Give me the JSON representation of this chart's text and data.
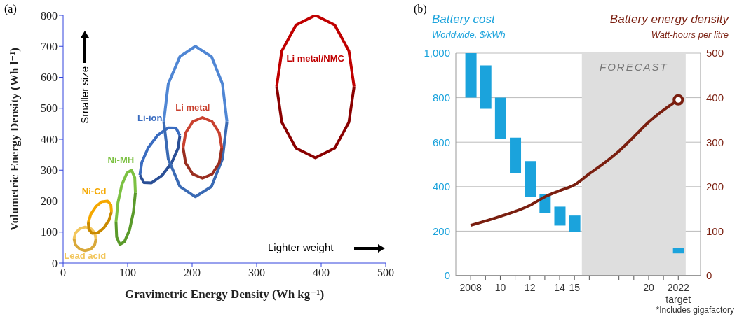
{
  "chart_data": [
    {
      "type": "line",
      "title": "(a)",
      "xlabel": "Gravimetric Energy Density (Wh kg⁻¹)",
      "ylabel": "Volumetric Energy Density (Wh l⁻¹)",
      "xlim": [
        0,
        500
      ],
      "ylim": [
        0,
        800
      ],
      "xticks": [
        0,
        100,
        200,
        300,
        400,
        500
      ],
      "yticks": [
        0,
        100,
        200,
        300,
        400,
        500,
        600,
        700,
        800
      ],
      "annotations": [
        "Smaller size",
        "Lighter weight"
      ],
      "series": [
        {
          "name": "Lead acid",
          "color": "#f2c65c",
          "x": [
            17,
            19,
            26,
            34,
            43,
            49,
            51
          ],
          "values": [
            78,
            97,
            111,
            116,
            111,
            97,
            78
          ]
        },
        {
          "color": "#d9a93a",
          "x": [
            17,
            19,
            26,
            34,
            43,
            49,
            51
          ],
          "values": [
            78,
            59,
            45,
            40,
            45,
            59,
            78
          ]
        },
        {
          "name": "Ni-Cd",
          "color": "#f5a800",
          "x": [
            39,
            43,
            51,
            60,
            69,
            74,
            75
          ],
          "values": [
            131,
            158,
            183,
            198,
            200,
            188,
            165
          ]
        },
        {
          "color": "#c98a00",
          "x": [
            39,
            40,
            45,
            54,
            63,
            71,
            75
          ],
          "values": [
            131,
            108,
            96,
            98,
            113,
            138,
            165
          ]
        },
        {
          "name": "Ni-MH",
          "color": "#7cc142",
          "x": [
            82,
            85,
            91,
            99,
            106,
            111,
            112
          ],
          "values": [
            133,
            195,
            253,
            291,
            300,
            276,
            227
          ]
        },
        {
          "color": "#5a9a2a",
          "x": [
            82,
            83,
            88,
            95,
            103,
            109,
            112
          ],
          "values": [
            133,
            84,
            60,
            69,
            107,
            165,
            227
          ]
        },
        {
          "name": "Li-ion",
          "color": "#3a6cc0",
          "x": [
            119,
            122,
            132,
            147,
            163,
            175,
            181
          ],
          "values": [
            284,
            326,
            373,
            414,
            437,
            436,
            412
          ]
        },
        {
          "color": "#2a4f96",
          "x": [
            119,
            125,
            137,
            153,
            168,
            178,
            181
          ],
          "values": [
            284,
            260,
            259,
            282,
            323,
            370,
            412
          ]
        },
        {
          "color": "#4f86d4",
          "x": [
            156,
            163,
            181,
            205,
            230,
            247,
            254
          ],
          "values": [
            457,
            579,
            667,
            700,
            667,
            579,
            457
          ]
        },
        {
          "color": "#3a6ab4",
          "x": [
            156,
            163,
            181,
            205,
            230,
            247,
            254
          ],
          "values": [
            457,
            336,
            247,
            214,
            247,
            336,
            457
          ]
        },
        {
          "name": "Li metal",
          "color": "#c9412f",
          "x": [
            186,
            190,
            201,
            216,
            231,
            242,
            246
          ],
          "values": [
            372,
            421,
            457,
            470,
            457,
            421,
            372
          ]
        },
        {
          "color": "#9a2e20",
          "x": [
            186,
            190,
            201,
            216,
            231,
            242,
            246
          ],
          "values": [
            372,
            323,
            287,
            274,
            287,
            323,
            372
          ]
        },
        {
          "name": "Li metal/NMC",
          "color": "#c00000",
          "x": [
            331,
            339,
            361,
            391,
            421,
            443,
            451
          ],
          "values": [
            570,
            685,
            769,
            800,
            769,
            685,
            570
          ]
        },
        {
          "color": "#8a0000",
          "x": [
            331,
            339,
            361,
            391,
            421,
            443,
            451
          ],
          "values": [
            570,
            455,
            371,
            340,
            371,
            455,
            570
          ]
        }
      ]
    },
    {
      "type": "bar",
      "title": "(b)",
      "ylabel": "Battery cost",
      "y2label": "Battery energy density",
      "annotations": [
        "Worldwide, $/kWh",
        "Watt-hours per litre",
        "*Includes gigafactory"
      ],
      "xlim": [
        2007,
        2023.5
      ],
      "xticks": [
        {
          "value": 2008,
          "label": "2008"
        },
        {
          "value": 2009,
          "label": null
        },
        {
          "value": 2010,
          "label": "10"
        },
        {
          "value": 2011,
          "label": null
        },
        {
          "value": 2012,
          "label": "12"
        },
        {
          "value": 2013,
          "label": null
        },
        {
          "value": 2014,
          "label": "14"
        },
        {
          "value": 2015,
          "label": "15"
        },
        {
          "value": 2016,
          "label": null
        },
        {
          "value": 2017,
          "label": null
        },
        {
          "value": 2018,
          "label": null
        },
        {
          "value": 2019,
          "label": null
        },
        {
          "value": 2020,
          "label": "20"
        },
        {
          "value": 2021,
          "label": null
        },
        {
          "value": 2022,
          "label": "2022\ntarget"
        }
      ],
      "ylim": [
        0,
        1000
      ],
      "yticks": [
        0,
        200,
        400,
        600,
        800,
        {
          "value": 1000,
          "label": "1,000"
        }
      ],
      "y2lim": [
        0,
        500
      ],
      "y2ticks": [
        0,
        100,
        200,
        300,
        400,
        500
      ],
      "grid": "y",
      "bands": [
        {
          "axis": "x",
          "from": 2015.5,
          "to": 2022.5,
          "label": "FORECAST",
          "color": "#dedede"
        }
      ],
      "series": [
        {
          "type": "bar",
          "color": "#1ba3dc",
          "x": [
            2008,
            2009,
            2010,
            2011,
            2012,
            2013,
            2014,
            2015,
            2022
          ],
          "base": [
            800,
            750,
            615,
            460,
            355,
            280,
            225,
            195,
            100
          ],
          "values": [
            200,
            195,
            185,
            160,
            160,
            85,
            85,
            75,
            25
          ]
        },
        {
          "type": "line",
          "axis": "y2",
          "color": "#7a1f10",
          "x": [
            2008,
            2010,
            2012,
            2013,
            2014,
            2015,
            2016,
            2017,
            2018,
            2019,
            2020,
            2021,
            2022
          ],
          "values": [
            113,
            133,
            158,
            177,
            191,
            204,
            229,
            253,
            280,
            312,
            345,
            372,
            395
          ]
        },
        {
          "type": "scatter",
          "axis": "y2",
          "marker": "circle",
          "color": "#7a1f10",
          "x": [
            2022
          ],
          "values": [
            395
          ]
        }
      ]
    }
  ]
}
